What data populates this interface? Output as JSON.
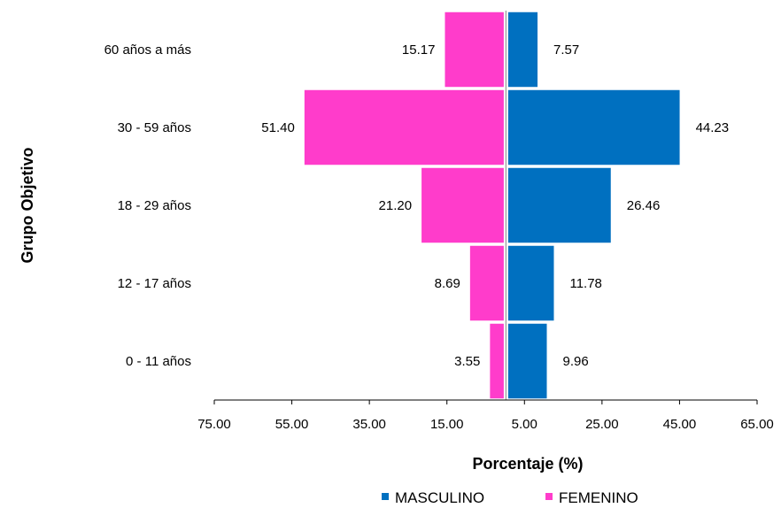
{
  "chart_data": {
    "type": "bar",
    "orientation": "horizontal-pyramid",
    "title": "",
    "xlabel": "Porcentaje (%)",
    "ylabel": "Grupo Objetivo",
    "categories": [
      "60 años a más",
      "30 - 59 años",
      "18 - 29 años",
      "12 - 17 años",
      "0 - 11 años"
    ],
    "series": [
      {
        "name": "MASCULINO",
        "color": "#0070C0",
        "side": "right",
        "values": [
          7.57,
          44.23,
          26.46,
          11.78,
          9.96
        ],
        "labels": [
          "7.57",
          "44.23",
          "26.46",
          "11.78",
          "9.96"
        ]
      },
      {
        "name": "FEMENINO",
        "color": "#FF3CCB",
        "side": "left",
        "values": [
          15.17,
          51.4,
          21.2,
          8.69,
          3.55
        ],
        "labels": [
          "15.17",
          "51.40",
          "21.20",
          "8.69",
          "3.55"
        ]
      }
    ],
    "xticks": [
      "75.00",
      "55.00",
      "35.00",
      "15.00",
      "5.00",
      "25.00",
      "45.00",
      "65.00"
    ],
    "xlim": [
      -75,
      65
    ],
    "grid": false,
    "legend_position": "bottom"
  }
}
